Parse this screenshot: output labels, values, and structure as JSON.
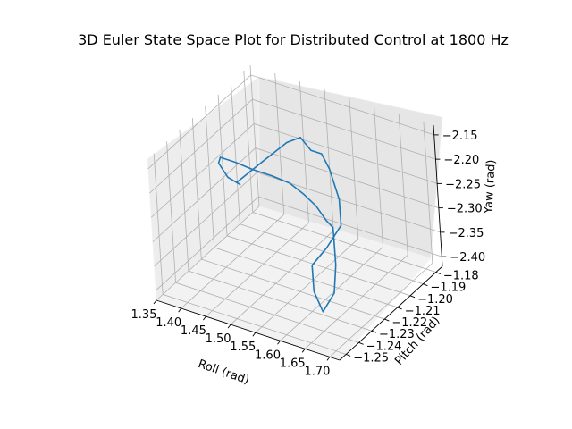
{
  "chart_data": {
    "type": "line",
    "projection": "3d",
    "title": "3D Euler State Space Plot for Distributed Control at 1800 Hz",
    "xlabel": "Roll (rad)",
    "ylabel": "Pitch (rad)",
    "zlabel": "Yaw (rad)",
    "xlim": [
      1.35,
      1.72
    ],
    "ylim": [
      -1.255,
      -1.175
    ],
    "zlim": [
      -2.42,
      -2.13
    ],
    "xticks": [
      "1.35",
      "1.40",
      "1.45",
      "1.50",
      "1.55",
      "1.60",
      "1.65",
      "1.70"
    ],
    "yticks": [
      "−1.25",
      "−1.24",
      "−1.23",
      "−1.22",
      "−1.21",
      "−1.20",
      "−1.19",
      "−1.18"
    ],
    "zticks": [
      "−2.40",
      "−2.35",
      "−2.30",
      "−2.25",
      "−2.20",
      "−2.15"
    ],
    "grid": true,
    "series_color": "#1f77b4",
    "series": [
      {
        "x": [
          1.42,
          1.45,
          1.48,
          1.5,
          1.52,
          1.55,
          1.57,
          1.6,
          1.62,
          1.61,
          1.6,
          1.62,
          1.65,
          1.67,
          1.66,
          1.64,
          1.62,
          1.59,
          1.56,
          1.53,
          1.5,
          1.47,
          1.44,
          1.41,
          1.38,
          1.37,
          1.39,
          1.42
        ],
        "y": [
          -1.215,
          -1.205,
          -1.198,
          -1.195,
          -1.195,
          -1.198,
          -1.2,
          -1.205,
          -1.212,
          -1.22,
          -1.228,
          -1.235,
          -1.24,
          -1.238,
          -1.232,
          -1.225,
          -1.218,
          -1.212,
          -1.208,
          -1.206,
          -1.205,
          -1.207,
          -1.21,
          -1.212,
          -1.212,
          -1.21,
          -1.211,
          -1.213
        ],
        "z": [
          -2.25,
          -2.22,
          -2.19,
          -2.18,
          -2.2,
          -2.19,
          -2.21,
          -2.25,
          -2.28,
          -2.31,
          -2.33,
          -2.36,
          -2.38,
          -2.34,
          -2.3,
          -2.28,
          -2.27,
          -2.28,
          -2.27,
          -2.26,
          -2.25,
          -2.24,
          -2.23,
          -2.22,
          -2.22,
          -2.24,
          -2.26,
          -2.26
        ]
      }
    ]
  }
}
